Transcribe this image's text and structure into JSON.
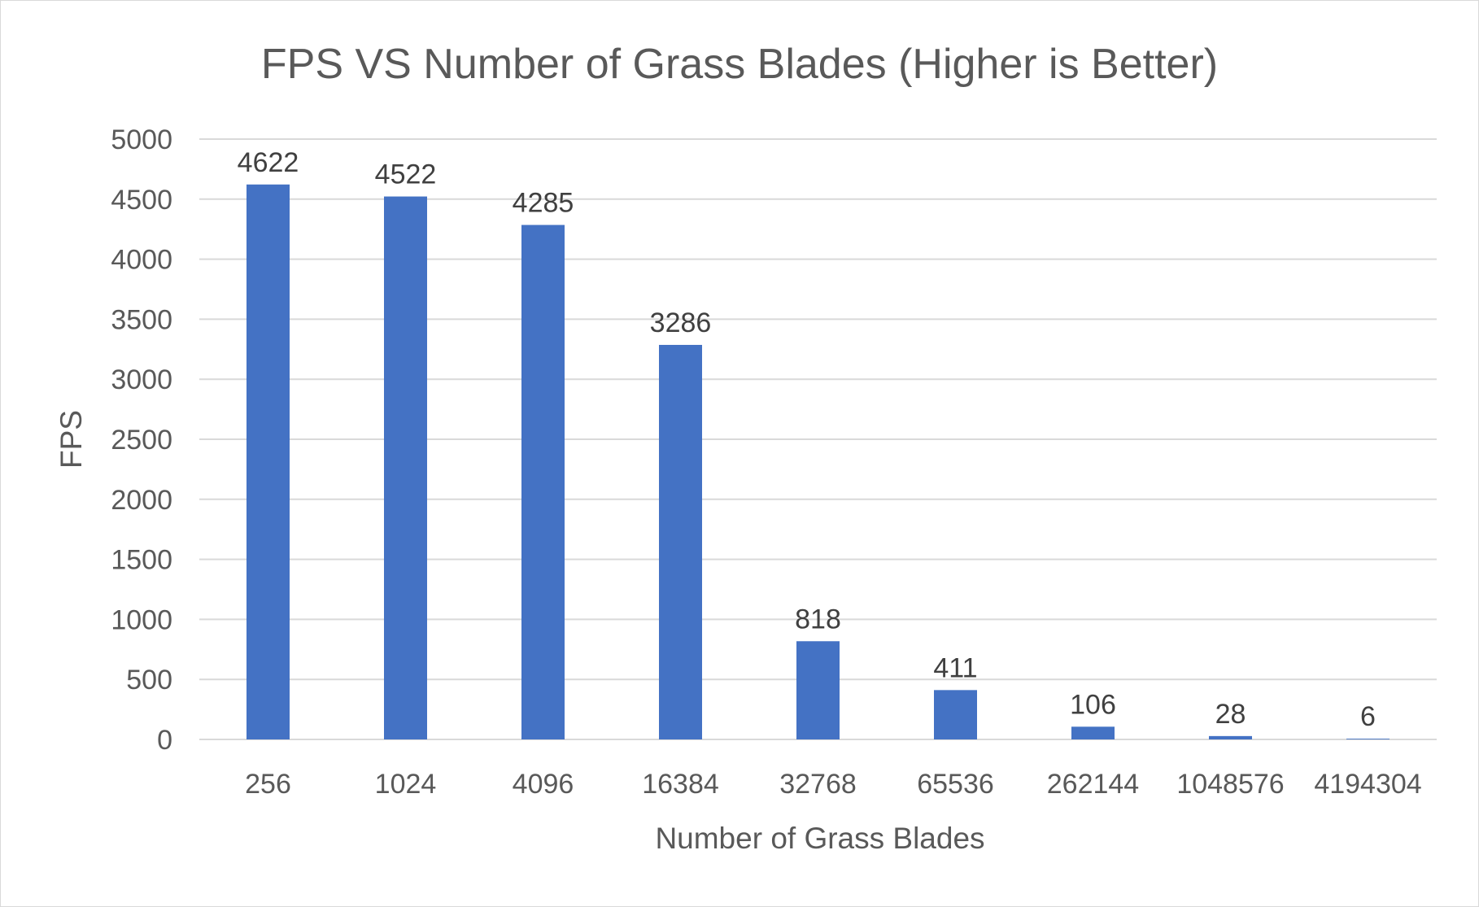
{
  "chart_data": {
    "type": "bar",
    "title": "FPS VS Number of Grass Blades (Higher is Better)",
    "xlabel": "Number of Grass Blades",
    "ylabel": "FPS",
    "categories": [
      "256",
      "1024",
      "4096",
      "16384",
      "32768",
      "65536",
      "262144",
      "1048576",
      "4194304"
    ],
    "values": [
      4622,
      4522,
      4285,
      3286,
      818,
      411,
      106,
      28,
      6
    ],
    "data_labels": [
      "4622",
      "4522",
      "4285",
      "3286",
      "818",
      "411",
      "106",
      "28",
      "6"
    ],
    "ylim": [
      0,
      5000
    ],
    "y_ticks": [
      0,
      500,
      1000,
      1500,
      2000,
      2500,
      3000,
      3500,
      4000,
      4500,
      5000
    ],
    "grid": true,
    "legend": "none",
    "colors": {
      "bar": "#4472c4",
      "grid": "#d9d9d9",
      "text": "#595959"
    }
  }
}
